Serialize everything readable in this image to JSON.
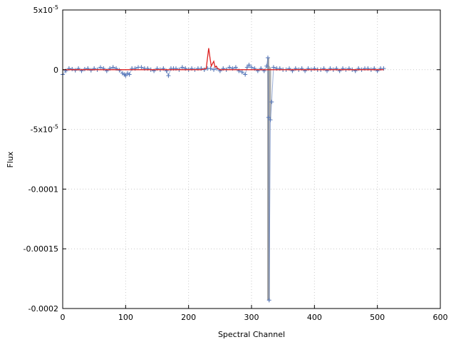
{
  "chart_data": {
    "type": "scatter",
    "xlabel": "Spectral Channel",
    "ylabel": "Flux",
    "xlim": [
      0,
      600
    ],
    "ylim": [
      -0.0002,
      5e-05
    ],
    "grid": true,
    "x_ticks": [
      {
        "value": 0,
        "label": "0"
      },
      {
        "value": 100,
        "label": "100"
      },
      {
        "value": 200,
        "label": "200"
      },
      {
        "value": 300,
        "label": "300"
      },
      {
        "value": 400,
        "label": "400"
      },
      {
        "value": 500,
        "label": "500"
      },
      {
        "value": 600,
        "label": "600"
      }
    ],
    "y_ticks": [
      {
        "value": 5e-05,
        "label": "5x10",
        "exp": "-5"
      },
      {
        "value": 0,
        "label": "0",
        "exp": ""
      },
      {
        "value": -5e-05,
        "label": "-5x10",
        "exp": "-5"
      },
      {
        "value": -0.0001,
        "label": "-0.0001",
        "exp": ""
      },
      {
        "value": -0.00015,
        "label": "-0.00015",
        "exp": ""
      },
      {
        "value": -0.0002,
        "label": "-0.0002",
        "exp": ""
      }
    ],
    "series": [
      {
        "color": "#5577bb",
        "marker": "plus",
        "style": "errorbar-points",
        "x": [
          0,
          5,
          10,
          15,
          20,
          25,
          30,
          35,
          40,
          45,
          50,
          55,
          60,
          65,
          70,
          75,
          80,
          85,
          90,
          95,
          98,
          100,
          103,
          106,
          110,
          115,
          120,
          125,
          130,
          135,
          140,
          145,
          150,
          155,
          160,
          165,
          168,
          172,
          176,
          180,
          185,
          190,
          195,
          200,
          205,
          210,
          215,
          220,
          225,
          230,
          235,
          240,
          245,
          250,
          255,
          260,
          265,
          270,
          275,
          280,
          285,
          290,
          293,
          296,
          300,
          305,
          310,
          315,
          320,
          324,
          326,
          327,
          328,
          330,
          332,
          335,
          340,
          345,
          350,
          355,
          360,
          365,
          370,
          375,
          380,
          385,
          390,
          395,
          400,
          405,
          410,
          415,
          420,
          425,
          430,
          435,
          440,
          445,
          450,
          455,
          460,
          465,
          470,
          475,
          480,
          485,
          490,
          495,
          500,
          505,
          510
        ],
        "y": [
          -4e-06,
          -1e-06,
          1e-06,
          5e-07,
          -5e-07,
          1e-06,
          -1e-06,
          5e-07,
          1e-06,
          -5e-07,
          1e-06,
          0,
          2e-06,
          1e-06,
          -1e-06,
          1e-06,
          2e-06,
          1e-06,
          -5e-07,
          -3e-06,
          -4e-06,
          -5e-06,
          -3e-06,
          -4e-06,
          1e-06,
          1e-06,
          2e-06,
          2e-06,
          1e-06,
          1e-06,
          0,
          -1e-06,
          1e-06,
          0,
          1e-06,
          -1e-06,
          -5e-06,
          1e-06,
          1e-06,
          1e-06,
          0,
          2e-06,
          1e-06,
          0,
          1e-06,
          0,
          1e-06,
          1e-06,
          0,
          1e-06,
          1e-06,
          0,
          1e-06,
          -1e-06,
          1e-06,
          0,
          2e-06,
          1e-06,
          2e-06,
          -1e-06,
          -2e-06,
          -4e-06,
          2e-06,
          4e-06,
          2e-06,
          1e-06,
          -1e-06,
          1e-06,
          -1e-06,
          3e-06,
          1e-05,
          -4e-05,
          -0.000193,
          -4.2e-05,
          -2.7e-05,
          2e-06,
          1e-06,
          1e-06,
          0,
          0,
          1e-06,
          -1e-06,
          1e-06,
          0,
          1e-06,
          -1e-06,
          1e-06,
          0,
          1e-06,
          0,
          0,
          1e-06,
          -1e-06,
          1e-06,
          0,
          1e-06,
          -1e-06,
          1e-06,
          0,
          1e-06,
          0,
          -1e-06,
          1e-06,
          0,
          1e-06,
          1e-06,
          0,
          1e-06,
          -1e-06,
          1e-06,
          1e-06
        ]
      },
      {
        "color": "#dd2222",
        "marker": "none",
        "style": "line",
        "x": [
          0,
          20,
          40,
          60,
          80,
          100,
          120,
          140,
          160,
          180,
          200,
          220,
          228,
          232,
          234,
          236,
          238,
          240,
          242,
          244,
          246,
          250,
          260,
          280,
          300,
          320,
          340,
          360,
          380,
          400,
          420,
          440,
          460,
          480,
          500,
          510
        ],
        "y": [
          0,
          0,
          0,
          0,
          0,
          0,
          0,
          0,
          0,
          0,
          0,
          0,
          1e-06,
          1.8e-05,
          1e-05,
          3e-06,
          5e-06,
          7e-06,
          2e-06,
          3e-06,
          1e-06,
          0,
          0,
          0,
          0,
          0,
          0,
          0,
          0,
          0,
          0,
          0,
          0,
          0,
          0,
          0
        ]
      }
    ],
    "errorbar_region": {
      "color": "#999999",
      "x": [
        326,
        327,
        328,
        330
      ],
      "y_low": [
        -0.000193,
        -0.000193,
        -0.000193,
        -4.2e-05
      ],
      "y_high": [
        1e-05,
        1e-05,
        3e-06,
        2e-06
      ]
    }
  }
}
